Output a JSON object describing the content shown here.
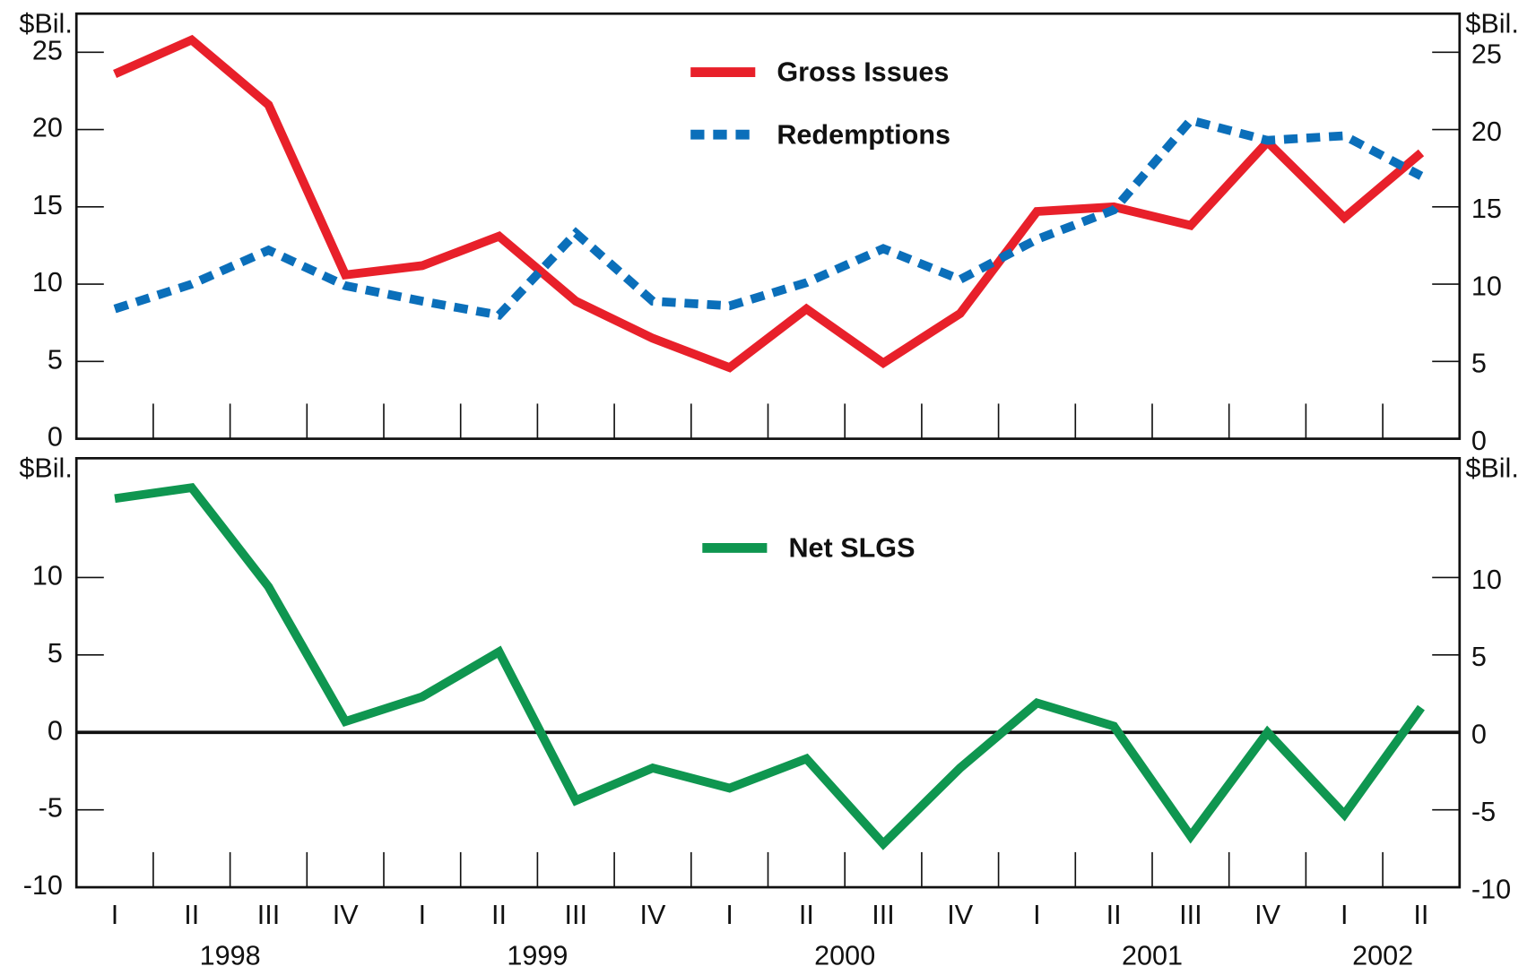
{
  "chart_data": [
    {
      "type": "line",
      "y_label": "$Bil.",
      "series": [
        {
          "name": "Gross Issues",
          "color": "#e8202a",
          "dashed": false,
          "values": [
            23.6,
            25.8,
            21.6,
            10.6,
            11.2,
            13.1,
            8.9,
            6.5,
            4.6,
            8.4,
            4.9,
            8.1,
            14.7,
            15.0,
            13.8,
            19.2,
            14.3,
            18.5
          ]
        },
        {
          "name": "Redemptions",
          "color": "#0b6fba",
          "dashed": true,
          "values": [
            8.4,
            10.0,
            12.2,
            9.9,
            8.9,
            8.0,
            13.3,
            8.9,
            8.6,
            10.1,
            12.3,
            10.3,
            12.9,
            14.8,
            20.6,
            19.3,
            19.6,
            17.0
          ]
        }
      ],
      "ylim": [
        0,
        27.5
      ],
      "yticks": [
        0,
        5,
        10,
        15,
        20,
        25
      ]
    },
    {
      "type": "line",
      "y_label": "$Bil.",
      "categories": [
        "I",
        "II",
        "III",
        "IV",
        "I",
        "II",
        "III",
        "IV",
        "I",
        "II",
        "III",
        "IV",
        "I",
        "II",
        "III",
        "IV",
        "I",
        "II"
      ],
      "year_labels": [
        "1998",
        "1999",
        "2000",
        "2001",
        "2002"
      ],
      "series": [
        {
          "name": "Net SLGS",
          "color": "#0f9650",
          "dashed": false,
          "values": [
            15.1,
            15.8,
            9.4,
            0.7,
            2.3,
            5.2,
            -4.4,
            -2.3,
            -3.6,
            -1.7,
            -7.2,
            -2.3,
            1.9,
            0.4,
            -6.7,
            0.0,
            -5.3,
            1.6
          ]
        }
      ],
      "ylim": [
        -10,
        17.7
      ],
      "yticks": [
        -10,
        -5,
        0,
        5,
        10
      ],
      "zero_line": true
    }
  ]
}
